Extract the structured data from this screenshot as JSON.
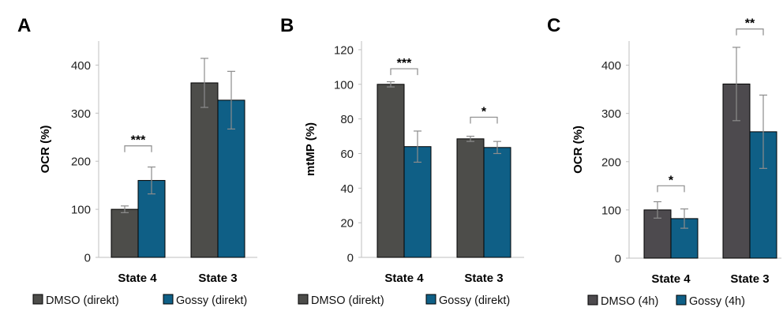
{
  "chart_data": [
    {
      "panel": "A",
      "type": "bar",
      "categories": [
        "State 4",
        "State 3"
      ],
      "ylabel": "OCR (%)",
      "ylim": [
        0,
        450
      ],
      "yticks": [
        0,
        100,
        200,
        300,
        400
      ],
      "series": [
        {
          "name": "DMSO (direkt)",
          "color": "#4d4d4a",
          "values": [
            100,
            363
          ],
          "errors": [
            7,
            51
          ]
        },
        {
          "name": "Gossy (direkt)",
          "color": "#0f5f86",
          "values": [
            160,
            327
          ],
          "errors": [
            28,
            60
          ]
        }
      ],
      "significance": [
        {
          "category": "State 4",
          "label": "***",
          "y": 232
        }
      ],
      "legend": "bottom"
    },
    {
      "panel": "B",
      "type": "bar",
      "categories": [
        "State 4",
        "State 3"
      ],
      "ylabel": "mtMP (%)",
      "ylim": [
        0,
        125
      ],
      "yticks": [
        0,
        20,
        40,
        60,
        80,
        100,
        120
      ],
      "series": [
        {
          "name": "DMSO (direkt)",
          "color": "#4d4d4a",
          "values": [
            100,
            68.5
          ],
          "errors": [
            1.5,
            1.5
          ]
        },
        {
          "name": "Gossy (direkt)",
          "color": "#0f5f86",
          "values": [
            64,
            63.5
          ],
          "errors": [
            9,
            3.5
          ]
        }
      ],
      "significance": [
        {
          "category": "State 4",
          "label": "***",
          "y": 109
        },
        {
          "category": "State 3",
          "label": "*",
          "y": 81
        }
      ],
      "legend": "bottom"
    },
    {
      "panel": "C",
      "type": "bar",
      "categories": [
        "State 4",
        "State 3"
      ],
      "ylabel": "OCR (%)",
      "ylim": [
        0,
        450
      ],
      "yticks": [
        0,
        100,
        200,
        300,
        400
      ],
      "series": [
        {
          "name": "DMSO (4h)",
          "color": "#4d4a4e",
          "values": [
            100,
            361
          ],
          "errors": [
            17,
            76
          ]
        },
        {
          "name": "Gossy (4h)",
          "color": "#0f5f86",
          "values": [
            82,
            262
          ],
          "errors": [
            20,
            76
          ]
        }
      ],
      "significance": [
        {
          "category": "State 4",
          "label": "*",
          "y": 150
        },
        {
          "category": "State 3",
          "label": "**",
          "y": 475
        }
      ],
      "legend": "bottom"
    }
  ]
}
